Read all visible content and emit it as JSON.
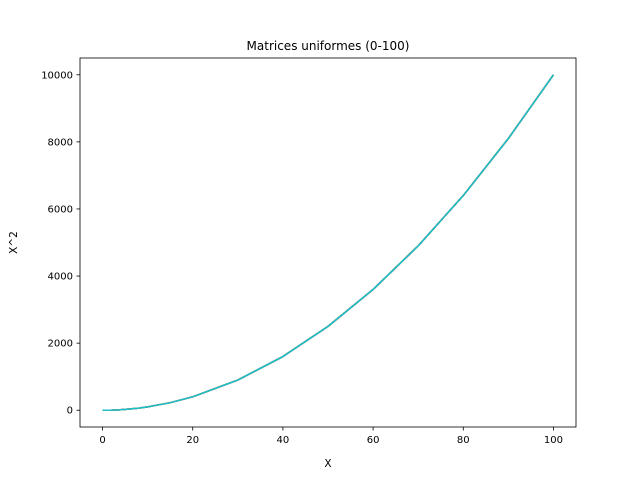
{
  "chart_data": {
    "type": "line",
    "title": "Matrices uniformes (0-100)",
    "xlabel": "X",
    "ylabel": "X^2",
    "xlim": [
      -5,
      105
    ],
    "ylim": [
      -500,
      10500
    ],
    "xticks": [
      0,
      20,
      40,
      60,
      80,
      100
    ],
    "yticks": [
      0,
      2000,
      4000,
      6000,
      8000,
      10000
    ],
    "grid": false,
    "legend": "none",
    "function": "y = x^2",
    "series_colors": [
      "#1f77b4",
      "#ff7f0e",
      "#2ca02c",
      "#d62728",
      "#9467bd",
      "#8c564b",
      "#e377c2",
      "#7f7f7f",
      "#bcbd22",
      "#17becf"
    ],
    "series": [
      {
        "x": [
          0,
          2,
          4,
          6,
          8,
          10,
          15,
          20,
          30,
          40,
          50,
          60,
          70,
          80,
          90,
          100
        ],
        "values": [
          0,
          4,
          16,
          36,
          64,
          100,
          225,
          400,
          900,
          1600,
          2500,
          3600,
          4900,
          6400,
          8100,
          10000
        ]
      },
      {
        "x": [
          0,
          2,
          4,
          6,
          8,
          10,
          15,
          20,
          30,
          40,
          50,
          60,
          70,
          80,
          90,
          100
        ],
        "values": [
          0,
          4,
          16,
          36,
          64,
          100,
          225,
          400,
          900,
          1600,
          2500,
          3600,
          4900,
          6400,
          8100,
          10000
        ]
      },
      {
        "x": [
          0,
          2,
          4,
          6,
          8,
          10,
          15,
          20,
          30,
          40,
          50,
          60,
          70,
          80,
          90,
          100
        ],
        "values": [
          0,
          4,
          16,
          36,
          64,
          100,
          225,
          400,
          900,
          1600,
          2500,
          3600,
          4900,
          6400,
          8100,
          10000
        ]
      },
      {
        "x": [
          0,
          2,
          4,
          6,
          8,
          10,
          15,
          20,
          30,
          40,
          50,
          60,
          70,
          80,
          90,
          100
        ],
        "values": [
          0,
          4,
          16,
          36,
          64,
          100,
          225,
          400,
          900,
          1600,
          2500,
          3600,
          4900,
          6400,
          8100,
          10000
        ]
      },
      {
        "x": [
          0,
          2,
          4,
          6,
          8,
          10,
          15,
          20,
          30,
          40,
          50,
          60,
          70,
          80,
          90,
          100
        ],
        "values": [
          0,
          4,
          16,
          36,
          64,
          100,
          225,
          400,
          900,
          1600,
          2500,
          3600,
          4900,
          6400,
          8100,
          10000
        ]
      },
      {
        "x": [
          0,
          2,
          4,
          6,
          8,
          10,
          15,
          20,
          30,
          40,
          50,
          60,
          70,
          80,
          90,
          100
        ],
        "values": [
          0,
          4,
          16,
          36,
          64,
          100,
          225,
          400,
          900,
          1600,
          2500,
          3600,
          4900,
          6400,
          8100,
          10000
        ]
      },
      {
        "x": [
          0,
          2,
          4,
          6,
          8,
          10,
          15,
          20,
          30,
          40,
          50,
          60,
          70,
          80,
          90,
          100
        ],
        "values": [
          0,
          4,
          16,
          36,
          64,
          100,
          225,
          400,
          900,
          1600,
          2500,
          3600,
          4900,
          6400,
          8100,
          10000
        ]
      },
      {
        "x": [
          0,
          2,
          4,
          6,
          8,
          10,
          15,
          20,
          30,
          40,
          50,
          60,
          70,
          80,
          90,
          100
        ],
        "values": [
          0,
          4,
          16,
          36,
          64,
          100,
          225,
          400,
          900,
          1600,
          2500,
          3600,
          4900,
          6400,
          8100,
          10000
        ]
      },
      {
        "x": [
          0,
          2,
          4,
          6,
          8,
          10,
          15,
          20,
          30,
          40,
          50,
          60,
          70,
          80,
          90,
          100
        ],
        "values": [
          0,
          4,
          16,
          36,
          64,
          100,
          225,
          400,
          900,
          1600,
          2500,
          3600,
          4900,
          6400,
          8100,
          10000
        ]
      },
      {
        "x": [
          0,
          2,
          4,
          6,
          8,
          10,
          15,
          20,
          30,
          40,
          50,
          60,
          70,
          80,
          90,
          100
        ],
        "values": [
          0,
          4,
          16,
          36,
          64,
          100,
          225,
          400,
          900,
          1600,
          2500,
          3600,
          4900,
          6400,
          8100,
          10000
        ]
      }
    ]
  }
}
